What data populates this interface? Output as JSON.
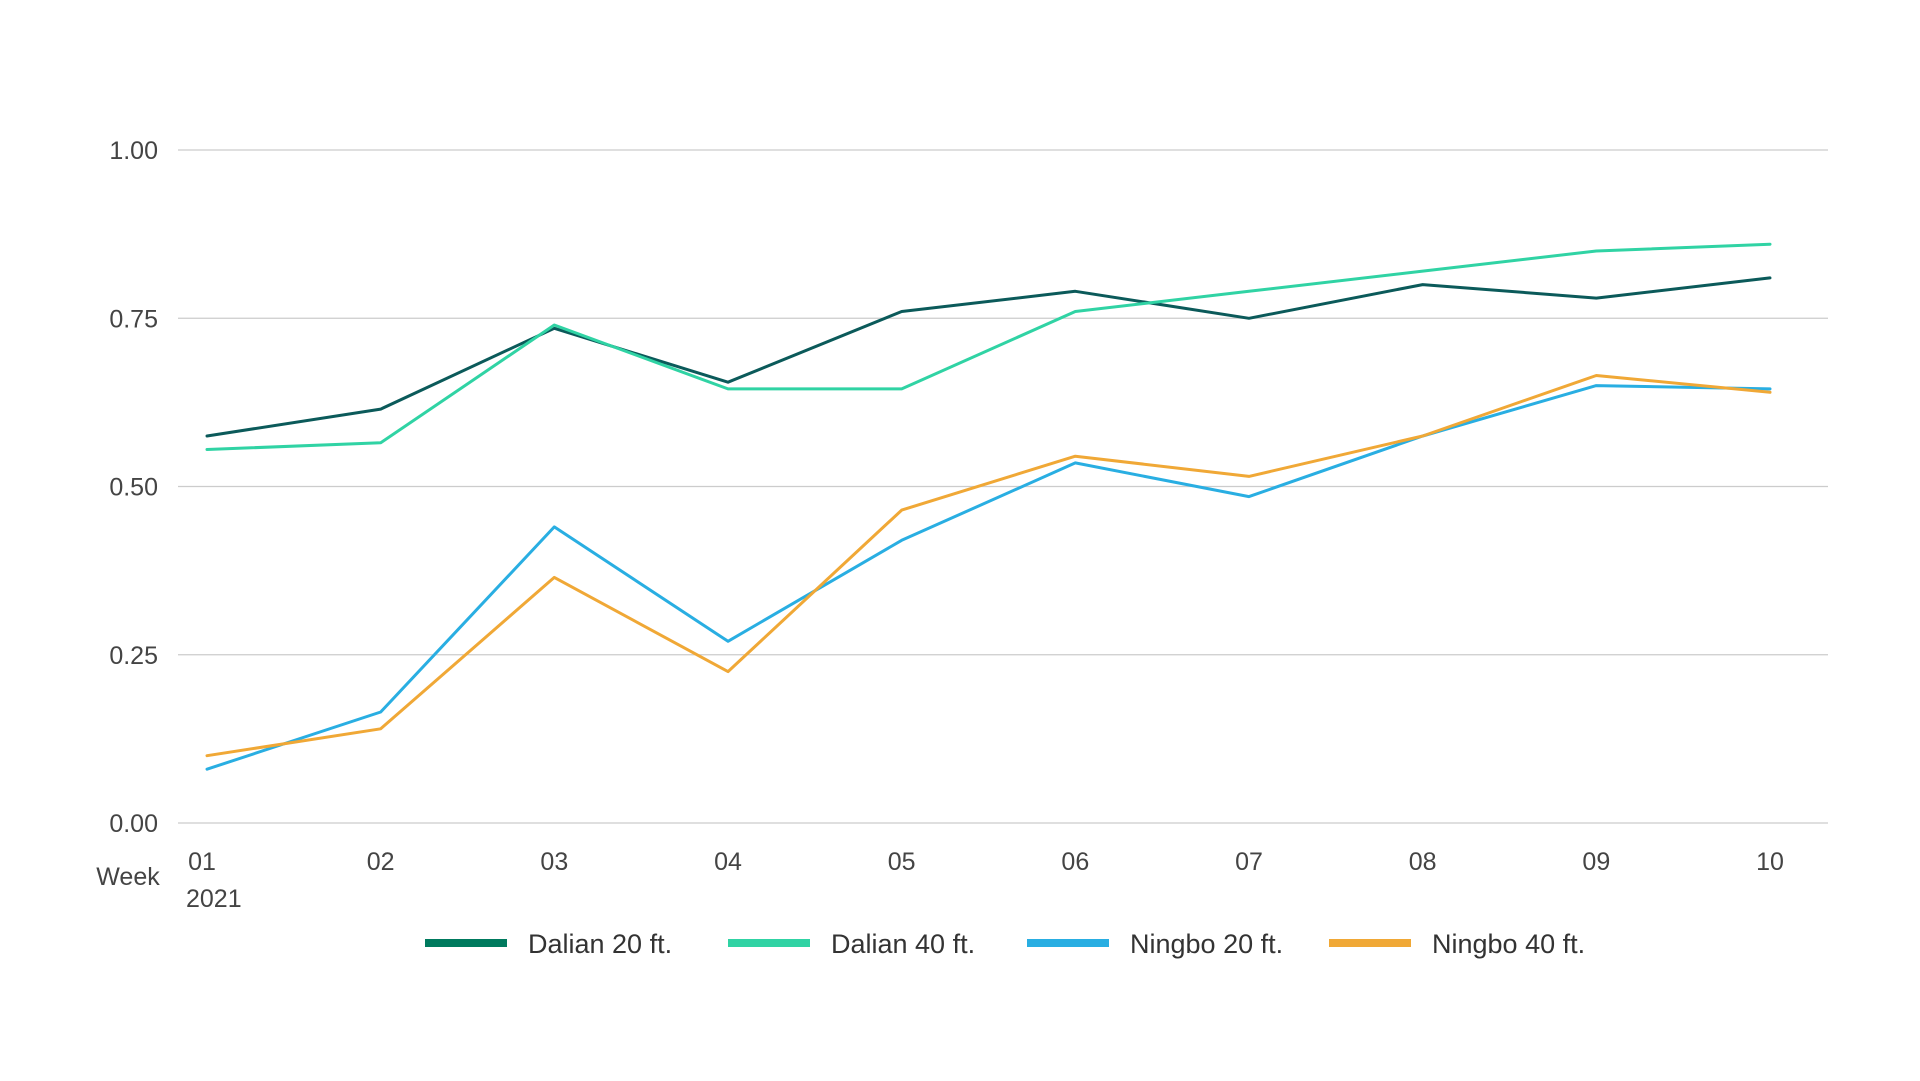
{
  "chart_data": {
    "type": "line",
    "title": "",
    "xlabel": "Week",
    "xlabel_sub": "2021",
    "ylabel": "",
    "ylim": [
      0,
      1
    ],
    "y_ticks": [
      "0.00",
      "0.25",
      "0.50",
      "0.75",
      "1.00"
    ],
    "y_tick_values": [
      0,
      0.25,
      0.5,
      0.75,
      1.0
    ],
    "categories": [
      "01",
      "02",
      "03",
      "04",
      "05",
      "06",
      "07",
      "08",
      "09",
      "10"
    ],
    "grid": true,
    "legend_position": "bottom-center",
    "series": [
      {
        "name": "Dalian 20 ft.",
        "color": "#0b5a5a",
        "legend_color": "#007a5e",
        "values": [
          0.575,
          0.615,
          0.735,
          0.655,
          0.76,
          0.79,
          0.75,
          0.8,
          0.78,
          0.81
        ]
      },
      {
        "name": "Dalian 40 ft.",
        "color": "#30d3a4",
        "legend_color": "#30d3a4",
        "values": [
          0.555,
          0.565,
          0.74,
          0.645,
          0.645,
          0.76,
          0.79,
          0.82,
          0.85,
          0.86
        ]
      },
      {
        "name": "Ningbo 20 ft.",
        "color": "#29aee2",
        "legend_color": "#29aee2",
        "values": [
          0.08,
          0.165,
          0.44,
          0.27,
          0.42,
          0.535,
          0.485,
          0.575,
          0.65,
          0.645
        ]
      },
      {
        "name": "Ningbo 40 ft.",
        "color": "#f0a836",
        "legend_color": "#f0a836",
        "values": [
          0.1,
          0.14,
          0.365,
          0.225,
          0.465,
          0.545,
          0.515,
          0.575,
          0.665,
          0.64
        ]
      }
    ]
  }
}
